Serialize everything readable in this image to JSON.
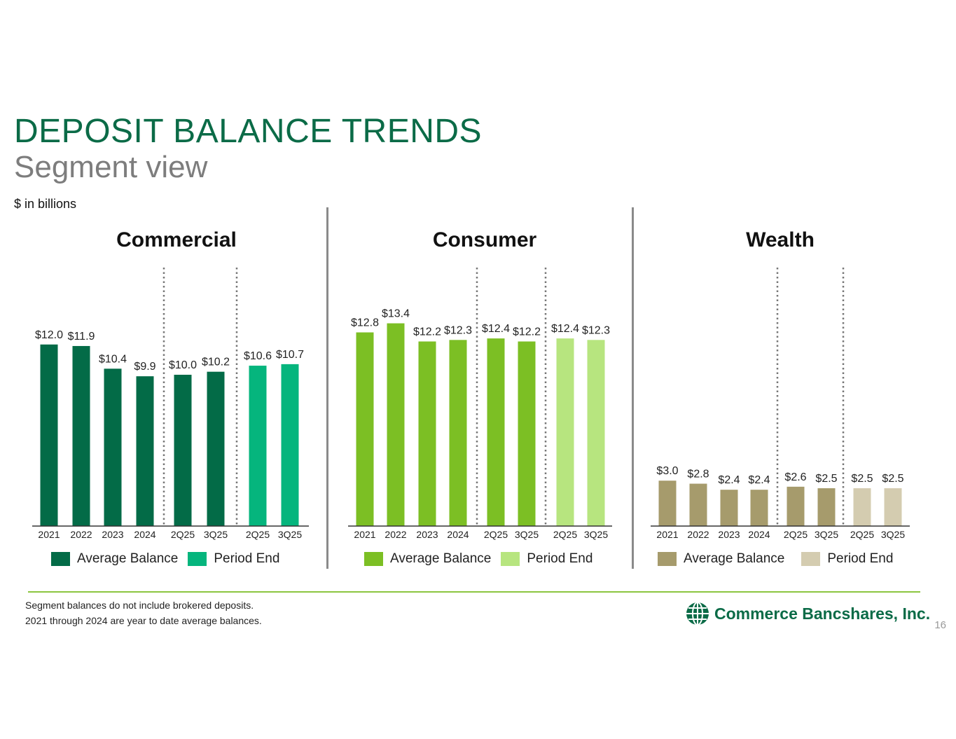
{
  "title": "DEPOSIT BALANCE TRENDS",
  "subtitle": "Segment view",
  "units": "$ in billions",
  "colors": {
    "commercial_avg": "#036b47",
    "commercial_end": "#05b57d",
    "consumer_avg": "#7cbf24",
    "consumer_end": "#b7e57f",
    "wealth_avg": "#a69b6c",
    "wealth_end": "#d4ccb0"
  },
  "chart_data": [
    {
      "type": "bar",
      "title": "Commercial",
      "categories": [
        "2021",
        "2022",
        "2023",
        "2024",
        "2Q25",
        "3Q25",
        "2Q25",
        "3Q25"
      ],
      "series": [
        {
          "name": "Average Balance",
          "values": [
            12.0,
            11.9,
            10.4,
            9.9,
            10.0,
            10.2,
            null,
            null
          ]
        },
        {
          "name": "Period End",
          "values": [
            null,
            null,
            null,
            null,
            null,
            null,
            10.6,
            10.7
          ]
        }
      ],
      "data_labels": [
        "$12.0",
        "$11.9",
        "$10.4",
        "$9.9",
        "$10.0",
        "$10.2",
        "$10.6",
        "$10.7"
      ],
      "legend": [
        "Average Balance",
        "Period End"
      ],
      "legend_position": "bottom"
    },
    {
      "type": "bar",
      "title": "Consumer",
      "categories": [
        "2021",
        "2022",
        "2023",
        "2024",
        "2Q25",
        "3Q25",
        "2Q25",
        "3Q25"
      ],
      "series": [
        {
          "name": "Average Balance",
          "values": [
            12.8,
            13.4,
            12.2,
            12.3,
            12.4,
            12.2,
            null,
            null
          ]
        },
        {
          "name": "Period End",
          "values": [
            null,
            null,
            null,
            null,
            null,
            null,
            12.4,
            12.3
          ]
        }
      ],
      "data_labels": [
        "$12.8",
        "$13.4",
        "$12.2",
        "$12.3",
        "$12.4",
        "$12.2",
        "$12.4",
        "$12.3"
      ],
      "legend": [
        "Average Balance",
        "Period End"
      ],
      "legend_position": "bottom"
    },
    {
      "type": "bar",
      "title": "Wealth",
      "categories": [
        "2021",
        "2022",
        "2023",
        "2024",
        "2Q25",
        "3Q25",
        "2Q25",
        "3Q25"
      ],
      "series": [
        {
          "name": "Average Balance",
          "values": [
            3.0,
            2.8,
            2.4,
            2.4,
            2.6,
            2.5,
            null,
            null
          ]
        },
        {
          "name": "Period End",
          "values": [
            null,
            null,
            null,
            null,
            null,
            null,
            2.5,
            2.5
          ]
        }
      ],
      "data_labels": [
        "$3.0",
        "$2.8",
        "$2.4",
        "$2.4",
        "$2.6",
        "$2.5",
        "$2.5",
        "$2.5"
      ],
      "legend": [
        "Average Balance",
        "Period End"
      ],
      "legend_position": "bottom"
    }
  ],
  "footnotes": [
    "Segment balances do not include brokered deposits.",
    "2021 through 2024 are year to date average balances."
  ],
  "logo": {
    "text": "Commerce Bancshares, Inc.",
    "icon": "globe-icon"
  },
  "page_number": "16"
}
